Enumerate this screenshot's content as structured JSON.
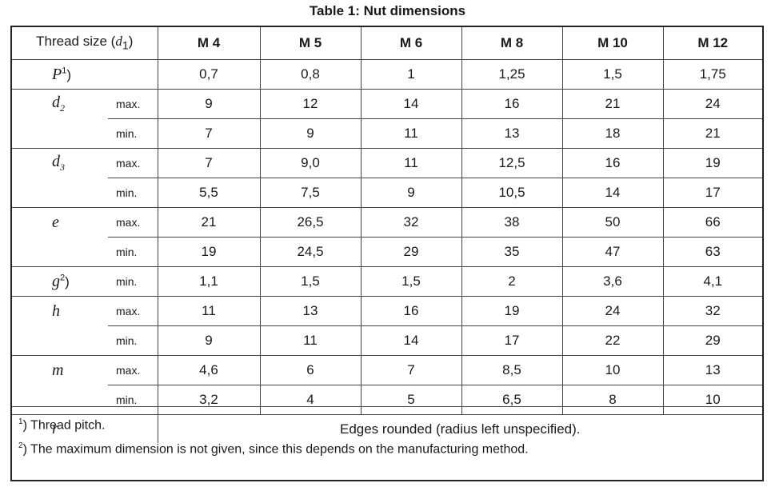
{
  "title": "Table 1:  Nut dimensions",
  "header": {
    "thread_size_label": "Thread size (",
    "thread_size_symbol": "d",
    "thread_size_sub": "1",
    "thread_size_close": ")",
    "columns": [
      "M 4",
      "M 5",
      "M 6",
      "M 8",
      "M 10",
      "M 12"
    ]
  },
  "rows": {
    "P": {
      "symbol": "P",
      "footnote": "1",
      "close": ")",
      "values": [
        "0,7",
        "0,8",
        "1",
        "1,25",
        "1,5",
        "1,75"
      ]
    },
    "d2": {
      "symbol": "d",
      "sub": "2",
      "max": {
        "label": "max.",
        "values": [
          "9",
          "12",
          "14",
          "16",
          "21",
          "24"
        ]
      },
      "min": {
        "label": "min.",
        "values": [
          "7",
          "9",
          "11",
          "13",
          "18",
          "21"
        ]
      }
    },
    "d3": {
      "symbol": "d",
      "sub": "3",
      "max": {
        "label": "max.",
        "values": [
          "7",
          "9,0",
          "11",
          "12,5",
          "16",
          "19"
        ]
      },
      "min": {
        "label": "min.",
        "values": [
          "5,5",
          "7,5",
          "9",
          "10,5",
          "14",
          "17"
        ]
      }
    },
    "e": {
      "symbol": "e",
      "max": {
        "label": "max.",
        "values": [
          "21",
          "26,5",
          "32",
          "38",
          "50",
          "66"
        ]
      },
      "min": {
        "label": "min.",
        "values": [
          "19",
          "24,5",
          "29",
          "35",
          "47",
          "63"
        ]
      }
    },
    "g": {
      "symbol": "g",
      "footnote": "2",
      "close": ")",
      "min": {
        "label": "min.",
        "values": [
          "1,1",
          "1,5",
          "1,5",
          "2",
          "3,6",
          "4,1"
        ]
      }
    },
    "h": {
      "symbol": "h",
      "max": {
        "label": "max.",
        "values": [
          "11",
          "13",
          "16",
          "19",
          "24",
          "32"
        ]
      },
      "min": {
        "label": "min.",
        "values": [
          "9",
          "11",
          "14",
          "17",
          "22",
          "29"
        ]
      }
    },
    "m": {
      "symbol": "m",
      "max": {
        "label": "max.",
        "values": [
          "4,6",
          "6",
          "7",
          "8,5",
          "10",
          "13"
        ]
      },
      "min": {
        "label": "min.",
        "values": [
          "3,2",
          "4",
          "5",
          "6,5",
          "8",
          "10"
        ]
      }
    },
    "r": {
      "symbol": "r",
      "note": "Edges rounded (radius left unspecified)."
    }
  },
  "footnotes": [
    {
      "mark": "1",
      "text": ")  Thread pitch."
    },
    {
      "mark": "2",
      "text": ")  The maximum dimension is not given, since this depends on the manufacturing method."
    }
  ]
}
